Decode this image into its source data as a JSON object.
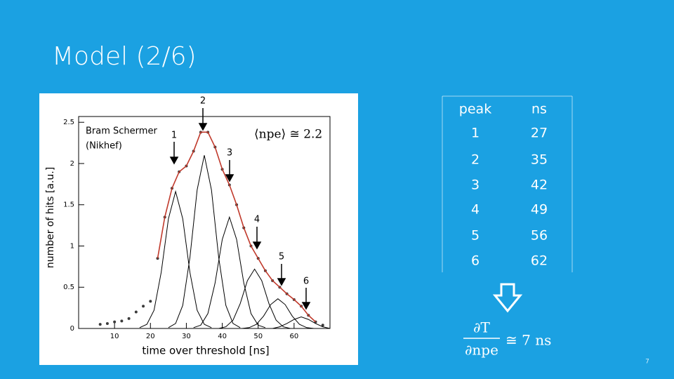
{
  "slide": {
    "title": "Model (2/6)",
    "page_number": "7"
  },
  "chart_data": {
    "type": "line",
    "xlabel": "time over threshold [ns]",
    "ylabel": "number of hits [a.u.]",
    "xlim": [
      0,
      70
    ],
    "ylim": [
      0,
      2.57
    ],
    "xticks": [
      10,
      20,
      30,
      40,
      50,
      60
    ],
    "yticks": [
      0,
      0.5,
      1,
      1.5,
      2,
      2.5
    ],
    "annotations": {
      "author": [
        "Bram Schermer",
        "(Nikhef)"
      ],
      "mean": "⟨npe⟩ ≅ 2.2",
      "peaks": [
        "1",
        "2",
        "3",
        "4",
        "5",
        "6"
      ]
    },
    "series": [
      {
        "style": "points",
        "color": "#3a3a3a",
        "x": [
          6,
          8,
          10,
          12,
          14,
          16,
          18,
          20,
          22,
          24,
          26,
          28,
          30,
          32,
          34,
          36,
          38,
          40,
          42,
          44,
          46,
          48,
          50,
          52,
          54,
          56,
          58,
          60,
          62,
          64,
          66,
          68
        ],
        "values": [
          0.05,
          0.06,
          0.08,
          0.09,
          0.12,
          0.2,
          0.27,
          0.33,
          0.85,
          1.35,
          1.7,
          1.9,
          1.97,
          2.15,
          2.38,
          2.38,
          2.2,
          1.93,
          1.74,
          1.5,
          1.22,
          1.0,
          0.85,
          0.7,
          0.58,
          0.5,
          0.42,
          0.35,
          0.27,
          0.16,
          0.08,
          0.04
        ]
      },
      {
        "style": "line",
        "color": "#c0392b",
        "x": [
          22,
          24,
          26,
          28,
          30,
          32,
          34,
          36,
          38,
          40,
          42,
          44,
          46,
          48,
          50,
          52,
          54,
          56,
          58,
          60,
          62,
          64,
          66
        ],
        "values": [
          0.85,
          1.35,
          1.7,
          1.9,
          1.97,
          2.15,
          2.38,
          2.38,
          2.2,
          1.93,
          1.74,
          1.5,
          1.22,
          1.0,
          0.85,
          0.7,
          0.58,
          0.5,
          0.42,
          0.35,
          0.27,
          0.16,
          0.08
        ]
      },
      {
        "style": "line",
        "color": "#000000",
        "x": [
          17,
          19,
          21,
          23,
          25,
          27,
          29,
          31,
          33,
          35,
          37
        ],
        "values": [
          0.01,
          0.05,
          0.22,
          0.68,
          1.33,
          1.66,
          1.33,
          0.68,
          0.22,
          0.05,
          0.01
        ]
      },
      {
        "style": "line",
        "color": "#000000",
        "x": [
          25,
          27,
          29,
          31,
          33,
          35,
          37,
          39,
          41,
          43,
          45
        ],
        "values": [
          0.01,
          0.06,
          0.28,
          0.86,
          1.68,
          2.1,
          1.68,
          0.86,
          0.28,
          0.06,
          0.01
        ]
      },
      {
        "style": "line",
        "color": "#000000",
        "x": [
          32,
          34,
          36,
          38,
          40,
          42,
          44,
          46,
          48,
          50,
          52
        ],
        "values": [
          0.01,
          0.04,
          0.18,
          0.55,
          1.08,
          1.35,
          1.08,
          0.55,
          0.18,
          0.04,
          0.01
        ]
      },
      {
        "style": "line",
        "color": "#000000",
        "x": [
          39,
          41,
          43,
          45,
          47,
          49,
          51,
          53,
          55,
          57,
          59
        ],
        "values": [
          0,
          0.02,
          0.1,
          0.3,
          0.58,
          0.72,
          0.58,
          0.3,
          0.1,
          0.02,
          0
        ]
      },
      {
        "style": "line",
        "color": "#000000",
        "x": [
          45.5,
          47.5,
          49.5,
          51.5,
          53.5,
          55.5,
          57.5,
          59.5,
          61.5,
          63.5,
          65.5
        ],
        "values": [
          0,
          0.01,
          0.05,
          0.15,
          0.29,
          0.36,
          0.29,
          0.15,
          0.05,
          0.01,
          0
        ]
      },
      {
        "style": "line",
        "color": "#000000",
        "x": [
          52,
          54,
          56,
          58,
          60,
          62,
          64,
          66,
          68,
          70
        ],
        "values": [
          0,
          0,
          0.02,
          0.06,
          0.11,
          0.14,
          0.11,
          0.06,
          0.02,
          0
        ]
      }
    ]
  },
  "table": {
    "header": [
      "peak",
      "ns"
    ],
    "rows": [
      [
        1,
        27
      ],
      [
        2,
        35
      ],
      [
        3,
        42
      ],
      [
        4,
        49
      ],
      [
        5,
        56
      ],
      [
        6,
        62
      ]
    ]
  },
  "formula": {
    "numerator": "∂T",
    "denominator": "∂npe",
    "rhs": "≅ 7 ns"
  }
}
